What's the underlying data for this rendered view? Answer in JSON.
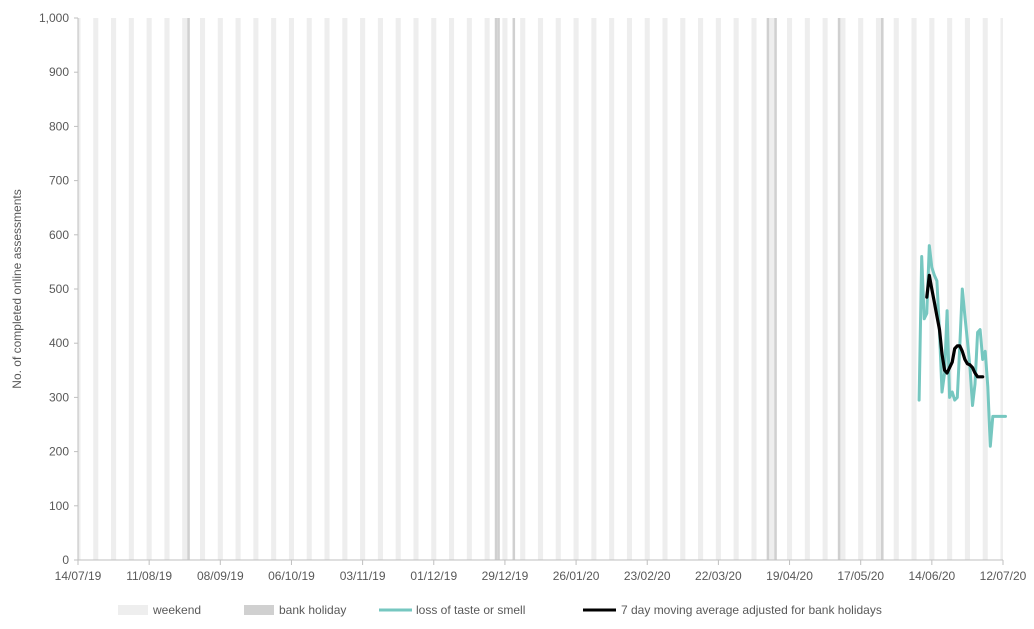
{
  "chart_data": {
    "type": "line",
    "title": "",
    "ylabel": "No. of completed online assessments",
    "xlabel": "",
    "ylim": [
      0,
      1000
    ],
    "y_ticks": [
      0,
      100,
      200,
      300,
      400,
      500,
      600,
      700,
      800,
      900,
      1000
    ],
    "y_tick_labels": [
      "0",
      "100",
      "200",
      "300",
      "400",
      "500",
      "600",
      "700",
      "800",
      "900",
      "1,000"
    ],
    "x_range": [
      "2019-07-14",
      "2020-07-12"
    ],
    "x_ticks": [
      "2019-07-14",
      "2019-08-11",
      "2019-09-08",
      "2019-10-06",
      "2019-11-03",
      "2019-12-01",
      "2019-12-29",
      "2020-01-26",
      "2020-02-23",
      "2020-03-22",
      "2020-04-19",
      "2020-05-17",
      "2020-06-14",
      "2020-07-12"
    ],
    "x_tick_labels": [
      "14/07/19",
      "11/08/19",
      "08/09/19",
      "06/10/19",
      "03/11/19",
      "01/12/19",
      "29/12/19",
      "26/01/20",
      "23/02/20",
      "22/03/20",
      "19/04/20",
      "17/05/20",
      "14/06/20",
      "12/07/20"
    ],
    "bank_holidays": [
      "2019-08-26",
      "2019-12-25",
      "2019-12-26",
      "2020-01-01",
      "2020-04-10",
      "2020-04-13",
      "2020-05-08",
      "2020-05-25"
    ],
    "grid": false,
    "legend_position": "bottom",
    "legend": [
      "weekend",
      "bank holiday",
      "loss of taste or smell",
      "7 day moving average adjusted for bank holidays"
    ],
    "series": [
      {
        "name": "loss of taste or smell",
        "x": [
          "2020-06-09",
          "2020-06-10",
          "2020-06-11",
          "2020-06-12",
          "2020-06-13",
          "2020-06-14",
          "2020-06-15",
          "2020-06-16",
          "2020-06-17",
          "2020-06-18",
          "2020-06-19",
          "2020-06-20",
          "2020-06-21",
          "2020-06-22",
          "2020-06-23",
          "2020-06-24",
          "2020-06-25",
          "2020-06-26",
          "2020-06-27",
          "2020-06-28",
          "2020-06-29",
          "2020-06-30",
          "2020-07-01",
          "2020-07-02",
          "2020-07-03",
          "2020-07-04",
          "2020-07-05",
          "2020-07-06",
          "2020-07-07",
          "2020-07-08",
          "2020-07-09",
          "2020-07-10",
          "2020-07-11",
          "2020-07-12",
          "2020-07-13"
        ],
        "values": [
          295,
          560,
          445,
          455,
          580,
          540,
          525,
          515,
          420,
          310,
          345,
          460,
          300,
          310,
          295,
          300,
          395,
          500,
          450,
          405,
          355,
          285,
          325,
          420,
          425,
          370,
          385,
          320,
          210,
          265,
          265,
          265,
          265,
          265,
          265
        ]
      },
      {
        "name": "7 day moving average adjusted for bank holidays",
        "x": [
          "2020-06-12",
          "2020-06-13",
          "2020-06-14",
          "2020-06-15",
          "2020-06-16",
          "2020-06-17",
          "2020-06-18",
          "2020-06-19",
          "2020-06-20",
          "2020-06-21",
          "2020-06-22",
          "2020-06-23",
          "2020-06-24",
          "2020-06-25",
          "2020-06-26",
          "2020-06-27",
          "2020-06-28",
          "2020-06-29",
          "2020-06-30",
          "2020-07-01",
          "2020-07-02",
          "2020-07-03",
          "2020-07-04"
        ],
        "values": [
          485,
          525,
          500,
          475,
          450,
          425,
          380,
          350,
          345,
          355,
          365,
          390,
          395,
          395,
          385,
          370,
          362,
          360,
          355,
          345,
          338,
          338,
          338
        ]
      }
    ],
    "colors": {
      "weekend": "#eeeeee",
      "bank_holiday": "#d0d0d0",
      "series": [
        "#76c7c0",
        "#000000"
      ],
      "axis": "#bfbfbf",
      "text": "#595959"
    }
  }
}
